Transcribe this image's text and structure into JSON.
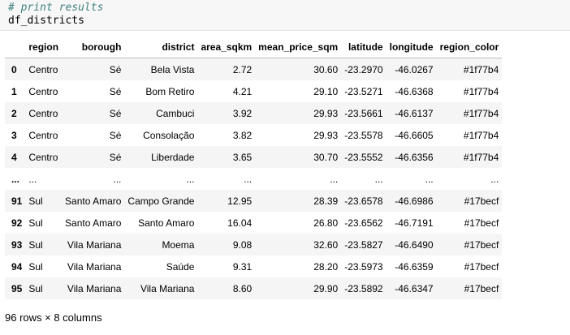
{
  "code": {
    "comment": "# print results",
    "statement": "df_districts"
  },
  "table": {
    "columns": [
      "",
      "region",
      "borough",
      "district",
      "area_sqkm",
      "mean_price_sqm",
      "latitude",
      "longitude",
      "region_color"
    ],
    "rows": [
      [
        "0",
        "Centro",
        "Sé",
        "Bela Vista",
        "2.72",
        "30.60",
        "-23.2970",
        "-46.0267",
        "#1f77b4"
      ],
      [
        "1",
        "Centro",
        "Sé",
        "Bom Retiro",
        "4.21",
        "29.10",
        "-23.5271",
        "-46.6368",
        "#1f77b4"
      ],
      [
        "2",
        "Centro",
        "Sé",
        "Cambuci",
        "3.92",
        "29.93",
        "-23.5661",
        "-46.6137",
        "#1f77b4"
      ],
      [
        "3",
        "Centro",
        "Sé",
        "Consolação",
        "3.82",
        "29.93",
        "-23.5578",
        "-46.6605",
        "#1f77b4"
      ],
      [
        "4",
        "Centro",
        "Sé",
        "Liberdade",
        "3.65",
        "30.70",
        "-23.5552",
        "-46.6356",
        "#1f77b4"
      ],
      [
        "...",
        "...",
        "...",
        "...",
        "...",
        "...",
        "...",
        "...",
        "..."
      ],
      [
        "91",
        "Sul",
        "Santo Amaro",
        "Campo Grande",
        "12.95",
        "28.39",
        "-23.6578",
        "-46.6986",
        "#17becf"
      ],
      [
        "92",
        "Sul",
        "Santo Amaro",
        "Santo Amaro",
        "16.04",
        "26.80",
        "-23.6562",
        "-46.7191",
        "#17becf"
      ],
      [
        "93",
        "Sul",
        "Vila Mariana",
        "Moema",
        "9.08",
        "32.60",
        "-23.5827",
        "-46.6490",
        "#17becf"
      ],
      [
        "94",
        "Sul",
        "Vila Mariana",
        "Saúde",
        "9.31",
        "28.20",
        "-23.5973",
        "-46.6359",
        "#17becf"
      ],
      [
        "95",
        "Sul",
        "Vila Mariana",
        "Vila Mariana",
        "8.60",
        "29.90",
        "-23.5892",
        "-46.6347",
        "#17becf"
      ]
    ]
  },
  "footer": "96 rows × 8 columns",
  "colors": {
    "comment": "#408080",
    "stripe": "#f5f5f5",
    "cell_background": "#f7f7f7"
  }
}
